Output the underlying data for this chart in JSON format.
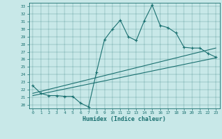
{
  "xlabel": "Humidex (Indice chaleur)",
  "bg_color": "#c8e8e8",
  "line_color": "#1a7070",
  "xlim": [
    -0.5,
    23.5
  ],
  "ylim": [
    19.5,
    33.5
  ],
  "xticks": [
    0,
    1,
    2,
    3,
    4,
    5,
    6,
    7,
    8,
    9,
    10,
    11,
    12,
    13,
    14,
    15,
    16,
    17,
    18,
    19,
    20,
    21,
    22,
    23
  ],
  "yticks": [
    20,
    21,
    22,
    23,
    24,
    25,
    26,
    27,
    28,
    29,
    30,
    31,
    32,
    33
  ],
  "main_line": {
    "x": [
      0,
      1,
      2,
      3,
      4,
      5,
      6,
      7,
      8,
      9,
      10,
      11,
      12,
      13,
      14,
      15,
      16,
      17,
      18,
      19,
      20,
      21,
      22,
      23
    ],
    "y": [
      22.5,
      21.5,
      21.2,
      21.2,
      21.1,
      21.1,
      20.2,
      19.7,
      24.3,
      28.6,
      30.0,
      31.2,
      29.0,
      28.5,
      31.1,
      33.2,
      30.5,
      30.2,
      29.5,
      27.6,
      27.5,
      27.5,
      26.8,
      26.3
    ]
  },
  "smooth_line1": {
    "x": [
      0,
      23
    ],
    "y": [
      21.5,
      27.5
    ]
  },
  "smooth_line2": {
    "x": [
      0,
      23
    ],
    "y": [
      21.2,
      26.2
    ]
  }
}
